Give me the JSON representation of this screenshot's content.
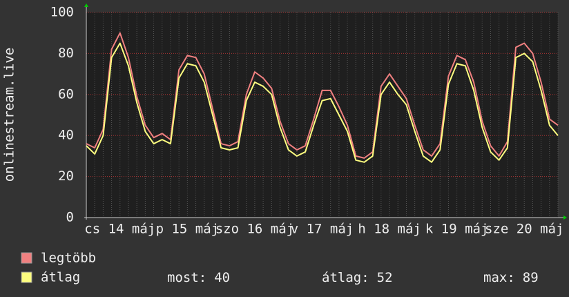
{
  "chart_data": {
    "type": "line",
    "y_label": "onlinestream.live",
    "ylim": [
      0,
      100
    ],
    "yticks": [
      0,
      20,
      40,
      60,
      80,
      100
    ],
    "grid": true,
    "xlabels": [
      "cs 14 máj",
      "p 15 máj",
      "szo 16 máj",
      "v 17 máj",
      "h 18 máj",
      "k 19 máj",
      "sze 20 máj"
    ],
    "series": [
      {
        "name": "legtöbb",
        "color": "#f08080",
        "values": [
          36,
          34,
          43,
          82,
          90,
          78,
          59,
          45,
          39,
          41,
          38,
          72,
          79,
          78,
          70,
          53,
          36,
          35,
          37,
          60,
          71,
          68,
          63,
          47,
          36,
          33,
          35,
          48,
          62,
          62,
          54,
          45,
          30,
          29,
          32,
          64,
          70,
          64,
          58,
          45,
          33,
          30,
          36,
          69,
          79,
          77,
          66,
          47,
          35,
          30,
          37,
          83,
          85,
          80,
          66,
          48,
          45
        ]
      },
      {
        "name": "átlag",
        "color": "#ffff80",
        "values": [
          35,
          31,
          40,
          78,
          85,
          74,
          56,
          42,
          36,
          38,
          36,
          68,
          75,
          74,
          66,
          50,
          34,
          33,
          34,
          57,
          66,
          64,
          60,
          44,
          33,
          30,
          32,
          45,
          57,
          58,
          50,
          42,
          28,
          27,
          30,
          60,
          66,
          60,
          55,
          42,
          30,
          27,
          33,
          65,
          75,
          74,
          62,
          44,
          32,
          28,
          34,
          78,
          80,
          76,
          62,
          45,
          40
        ]
      }
    ],
    "stats": [
      {
        "label": "most:",
        "value": 40
      },
      {
        "label": "átlag:",
        "value": 52
      },
      {
        "label": "max:",
        "value": 89
      }
    ]
  }
}
